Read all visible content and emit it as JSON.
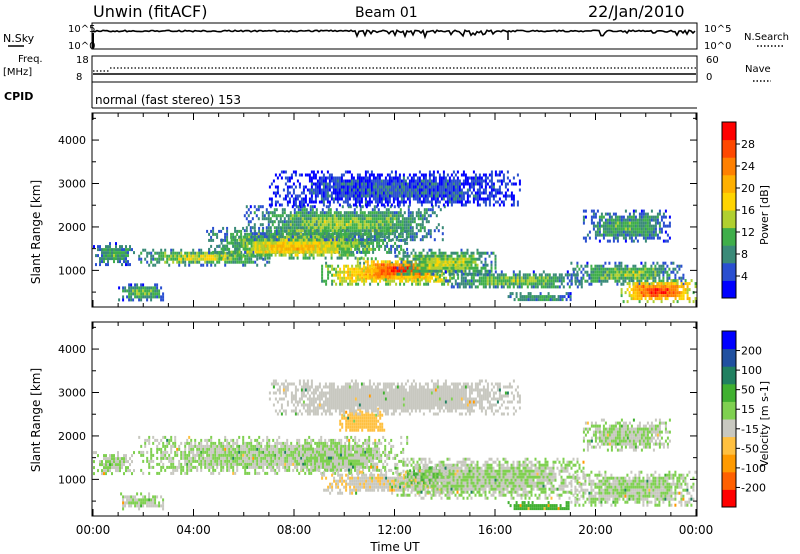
{
  "header": {
    "title": "Unwin (fitACF)",
    "beam": "Beam 01",
    "date": "22/Jan/2010"
  },
  "top_panels": {
    "nsky_label": "N.Sky",
    "nsky_ticks": [
      "10^5",
      "10^0"
    ],
    "nsearch_label": "N.Search",
    "nsearch_ticks": [
      "10^5",
      "10^0"
    ],
    "freq_label": "Freq.",
    "freq_unit": "[MHz]",
    "freq_ticks": [
      "18",
      "8"
    ],
    "nave_label": "Nave",
    "nave_ticks": [
      "60",
      "0"
    ],
    "cpid_label": "CPID",
    "cpid_text": "normal (fast stereo) 153"
  },
  "chart_data": [
    {
      "type": "heatmap",
      "name": "power-panel",
      "title": "",
      "xlabel": "Time UT",
      "ylabel": "Slant Range [km]",
      "x_ticks": [
        "00:00",
        "04:00",
        "08:00",
        "12:00",
        "16:00",
        "20:00",
        "00:00"
      ],
      "x_range_hours": [
        0,
        24
      ],
      "y_ticks": [
        1000,
        2000,
        3000,
        4000
      ],
      "ylim": [
        180,
        4600
      ],
      "colorbar": {
        "label": "Power [dB]",
        "ticks": [
          "4",
          "8",
          "12",
          "16",
          "20",
          "24",
          "28"
        ],
        "range": [
          0,
          30
        ],
        "colors": [
          "#0000ff",
          "#2a4fd0",
          "#3a8a78",
          "#3fae4a",
          "#b0d030",
          "#ffd400",
          "#ffb000",
          "#ff8000",
          "#ff4800",
          "#ff0000"
        ]
      },
      "echo_bands": [
        {
          "t": [
            0.0,
            1.6
          ],
          "r": [
            1150,
            1650
          ],
          "value": 10
        },
        {
          "t": [
            1.0,
            2.8
          ],
          "r": [
            350,
            700
          ],
          "value": 12
        },
        {
          "t": [
            1.8,
            7.0
          ],
          "r": [
            1150,
            1500
          ],
          "value": 14
        },
        {
          "t": [
            4.5,
            12.5
          ],
          "r": [
            1400,
            2000
          ],
          "value": 14
        },
        {
          "t": [
            5.0,
            11.0
          ],
          "r": [
            1300,
            1800
          ],
          "value": 18
        },
        {
          "t": [
            6.0,
            14.0
          ],
          "r": [
            1700,
            2500
          ],
          "value": 12
        },
        {
          "t": [
            7.0,
            17.0
          ],
          "r": [
            2500,
            3300
          ],
          "value": 5
        },
        {
          "t": [
            9.0,
            14.5
          ],
          "r": [
            700,
            1200
          ],
          "value": 22
        },
        {
          "t": [
            10.5,
            14.0
          ],
          "r": [
            800,
            1300
          ],
          "value": 27
        },
        {
          "t": [
            12.0,
            16.0
          ],
          "r": [
            900,
            1500
          ],
          "value": 14
        },
        {
          "t": [
            14.0,
            19.5
          ],
          "r": [
            600,
            1000
          ],
          "value": 12
        },
        {
          "t": [
            16.5,
            19.0
          ],
          "r": [
            300,
            500
          ],
          "value": 10
        },
        {
          "t": [
            19.0,
            23.5
          ],
          "r": [
            700,
            1200
          ],
          "value": 12
        },
        {
          "t": [
            19.5,
            23.0
          ],
          "r": [
            1700,
            2400
          ],
          "value": 10
        },
        {
          "t": [
            21.0,
            24.0
          ],
          "r": [
            300,
            800
          ],
          "value": 26
        }
      ]
    },
    {
      "type": "heatmap",
      "name": "velocity-panel",
      "title": "",
      "xlabel": "Time UT",
      "ylabel": "Slant Range [km]",
      "x_ticks": [
        "00:00",
        "04:00",
        "08:00",
        "12:00",
        "16:00",
        "20:00",
        "00:00"
      ],
      "x_range_hours": [
        0,
        24
      ],
      "y_ticks": [
        1000,
        2000,
        3000,
        4000
      ],
      "ylim": [
        180,
        4600
      ],
      "colorbar": {
        "label": "Velocity [m s-1]",
        "ticks": [
          "200",
          "100",
          "50",
          "15",
          "-15",
          "-50",
          "-100",
          "-200"
        ],
        "range": [
          -250,
          250
        ],
        "colors": [
          "#ff0000",
          "#ff6000",
          "#ff9a00",
          "#ffc040",
          "#c8c8c0",
          "#7fd050",
          "#40b030",
          "#208060",
          "#2050a0",
          "#0000ff"
        ]
      },
      "echo_bands": [
        {
          "t": [
            0.0,
            1.6
          ],
          "r": [
            1150,
            1650
          ],
          "value": 0
        },
        {
          "t": [
            1.0,
            2.8
          ],
          "r": [
            350,
            700
          ],
          "value": 0
        },
        {
          "t": [
            1.8,
            12.5
          ],
          "r": [
            1150,
            2000
          ],
          "value": 0
        },
        {
          "t": [
            8.0,
            11.5
          ],
          "r": [
            1200,
            1800
          ],
          "value": 0
        },
        {
          "t": [
            9.8,
            11.6
          ],
          "r": [
            2100,
            2650
          ],
          "value": -60
        },
        {
          "t": [
            7.0,
            17.0
          ],
          "r": [
            2500,
            3300
          ],
          "value": -30
        },
        {
          "t": [
            9.0,
            14.5
          ],
          "r": [
            700,
            1200
          ],
          "value": -45
        },
        {
          "t": [
            12.5,
            14.3
          ],
          "r": [
            900,
            1300
          ],
          "value": 60
        },
        {
          "t": [
            12.0,
            19.5
          ],
          "r": [
            600,
            1500
          ],
          "value": 0
        },
        {
          "t": [
            16.5,
            19.0
          ],
          "r": [
            300,
            500
          ],
          "value": 60
        },
        {
          "t": [
            19.0,
            24.0
          ],
          "r": [
            400,
            1200
          ],
          "value": 0
        },
        {
          "t": [
            19.5,
            23.0
          ],
          "r": [
            1700,
            2400
          ],
          "value": 0
        }
      ]
    }
  ]
}
